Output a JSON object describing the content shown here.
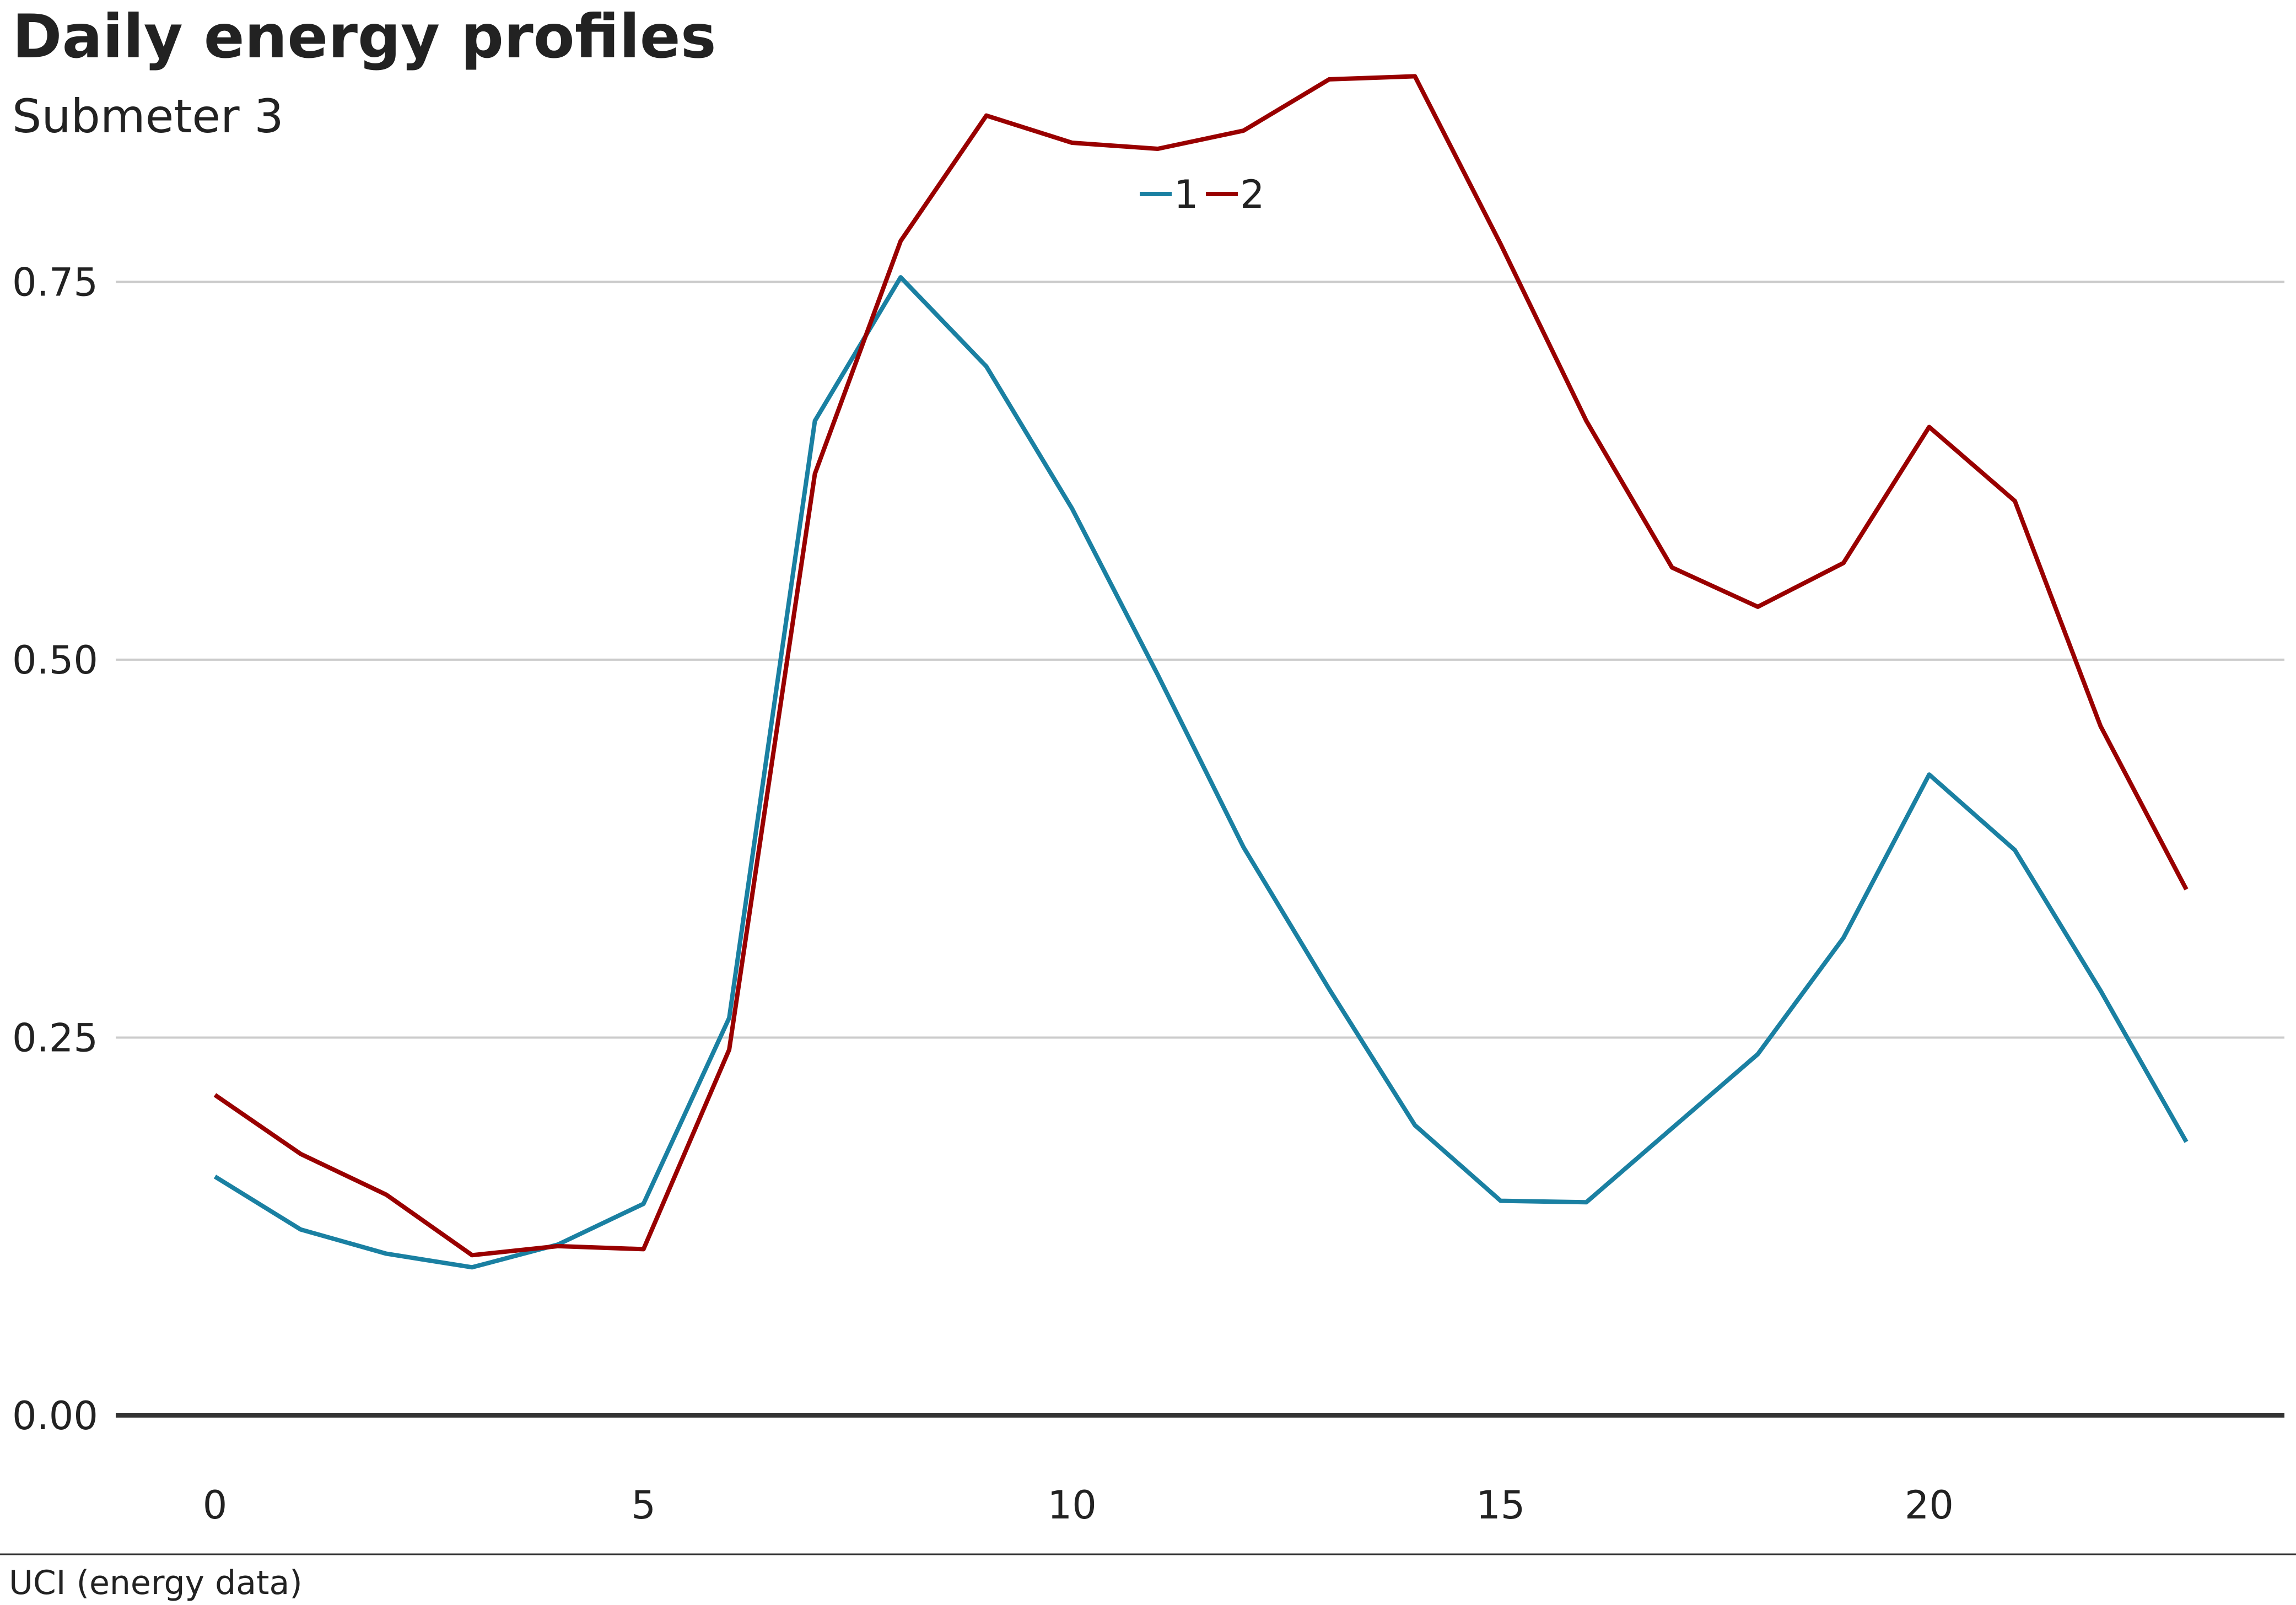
{
  "chart_data": {
    "type": "line",
    "title": "Daily energy profiles",
    "subtitle": "Submeter 3",
    "source": "UCI (energy data)",
    "xlabel": "",
    "ylabel": "",
    "x": [
      0,
      1,
      2,
      3,
      4,
      5,
      6,
      7,
      8,
      9,
      10,
      11,
      12,
      13,
      14,
      15,
      16,
      17,
      18,
      19,
      20,
      21,
      22,
      23
    ],
    "xlim": [
      -1.1,
      24.2
    ],
    "ylim": [
      0,
      0.9
    ],
    "x_ticks": [
      0,
      5,
      10,
      15,
      20
    ],
    "x_tick_labels": [
      "0",
      "5",
      "10",
      "15",
      "20"
    ],
    "y_ticks": [
      0,
      0.25,
      0.5,
      0.75
    ],
    "y_tick_labels": [
      "0.00",
      "0.25",
      "0.50",
      "0.75"
    ],
    "grid": "horizontal",
    "legend_position": "top-center",
    "series": [
      {
        "name": "1",
        "color": "#1a80a2",
        "values": [
          0.158,
          0.123,
          0.107,
          0.098,
          0.113,
          0.14,
          0.263,
          0.658,
          0.753,
          0.694,
          0.6,
          0.49,
          0.376,
          0.282,
          0.192,
          0.142,
          0.141,
          0.19,
          0.239,
          0.316,
          0.424,
          0.374,
          0.281,
          0.181
        ]
      },
      {
        "name": "2",
        "color": "#990000",
        "values": [
          0.212,
          0.173,
          0.146,
          0.106,
          0.112,
          0.11,
          0.242,
          0.623,
          0.777,
          0.86,
          0.842,
          0.838,
          0.85,
          0.884,
          0.886,
          0.775,
          0.658,
          0.561,
          0.535,
          0.564,
          0.654,
          0.605,
          0.456,
          0.348
        ]
      }
    ]
  }
}
